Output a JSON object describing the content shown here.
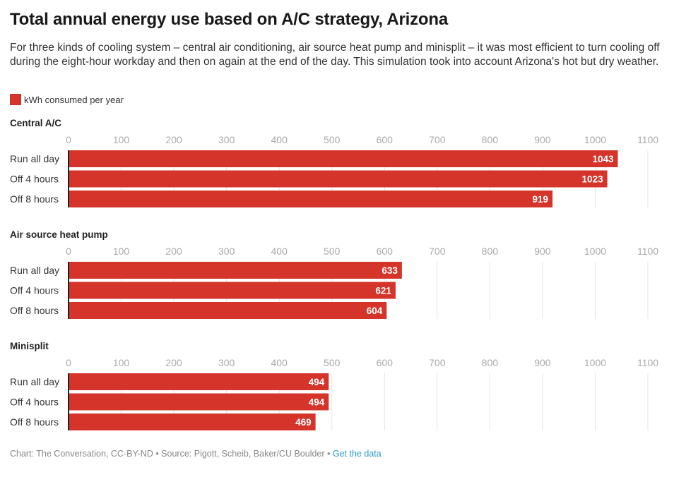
{
  "header": {
    "title": "Total annual energy use based on A/C strategy, Arizona",
    "subtitle": "For three kinds of cooling system – central air conditioning, air source heat pump and minisplit – it was most efficient to turn cooling off during the eight-hour workday and then on again at the end of the day. This simulation took into account Arizona's hot but dry weather."
  },
  "legend": {
    "label": "kWh consumed per year",
    "color": "#d4342a"
  },
  "footer": {
    "credit": "Chart: The Conversation, CC-BY-ND • Source: Pigott, Scheib, Baker/CU Boulder • ",
    "link_label": "Get the data",
    "link_color": "#2a9bc6"
  },
  "chart_data": [
    {
      "type": "bar",
      "orientation": "horizontal",
      "title": "Central A/C",
      "categories": [
        "Run all day",
        "Off 4 hours",
        "Off 8 hours"
      ],
      "series": [
        {
          "name": "kWh consumed per year",
          "values": [
            1043,
            1023,
            919
          ]
        }
      ],
      "xlim": [
        0,
        1100
      ],
      "ticks": [
        0,
        100,
        200,
        300,
        400,
        500,
        600,
        700,
        800,
        900,
        1000,
        1100
      ],
      "grid": true,
      "xlabel": "",
      "ylabel": ""
    },
    {
      "type": "bar",
      "orientation": "horizontal",
      "title": "Air source heat pump",
      "categories": [
        "Run all day",
        "Off 4 hours",
        "Off 8 hours"
      ],
      "series": [
        {
          "name": "kWh consumed per year",
          "values": [
            633,
            621,
            604
          ]
        }
      ],
      "xlim": [
        0,
        1100
      ],
      "ticks": [
        0,
        100,
        200,
        300,
        400,
        500,
        600,
        700,
        800,
        900,
        1000,
        1100
      ],
      "grid": true,
      "xlabel": "",
      "ylabel": ""
    },
    {
      "type": "bar",
      "orientation": "horizontal",
      "title": "Minisplit",
      "categories": [
        "Run all day",
        "Off 4 hours",
        "Off 8 hours"
      ],
      "series": [
        {
          "name": "kWh consumed per year",
          "values": [
            494,
            494,
            469
          ]
        }
      ],
      "xlim": [
        0,
        1100
      ],
      "ticks": [
        0,
        100,
        200,
        300,
        400,
        500,
        600,
        700,
        800,
        900,
        1000,
        1100
      ],
      "grid": true,
      "xlabel": "",
      "ylabel": ""
    }
  ]
}
